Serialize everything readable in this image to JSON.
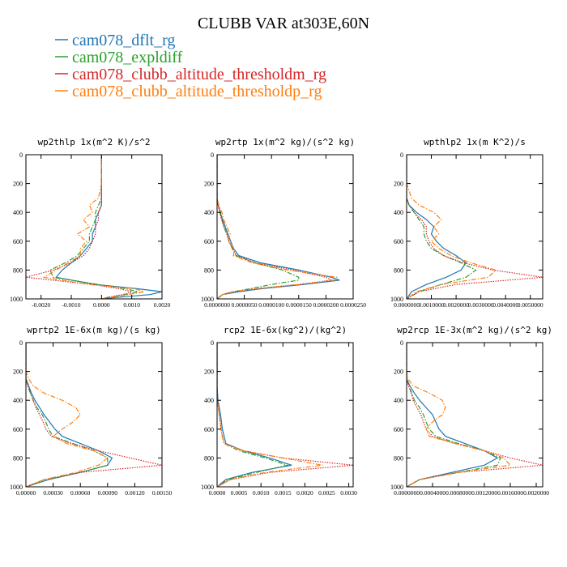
{
  "title": "CLUBB VAR at303E,60N",
  "legend": [
    {
      "label": "cam078_dflt_rg",
      "color": "#1f77b4",
      "dash": "solid"
    },
    {
      "label": "cam078_expldiff",
      "color": "#2ca02c",
      "dash": "dashdot"
    },
    {
      "label": "cam078_clubb_altitude_thresholdm_rg",
      "color": "#d62728",
      "dash": "dotted"
    },
    {
      "label": "cam078_clubb_altitude_thresholdp_rg",
      "color": "#ff7f0e",
      "dash": "dashdot"
    }
  ],
  "chart_data": [
    {
      "type": "line",
      "title": "wp2thlp  1x(m^2 K)/s^2",
      "xlim": [
        -0.0025,
        0.002
      ],
      "ylim": [
        1000,
        0
      ],
      "yticks": [
        0,
        200,
        400,
        600,
        800,
        1000
      ],
      "xticks": [
        "-0.0020",
        "-0.0010",
        "0.0000",
        "0.0010",
        "0.0020"
      ],
      "xtick_values": [
        -0.002,
        -0.001,
        0,
        0.001,
        0.002
      ],
      "y": [
        0,
        200,
        300,
        350,
        400,
        450,
        500,
        550,
        600,
        650,
        700,
        750,
        800,
        850,
        900,
        930,
        950,
        970,
        990,
        1000
      ],
      "series": [
        {
          "name": "cam078_dflt_rg",
          "values": [
            0,
            0,
            0,
            0,
            -0.0001,
            -0.0002,
            -0.0002,
            -0.0003,
            -0.0003,
            -0.0005,
            -0.0007,
            -0.001,
            -0.0013,
            -0.0015,
            -0.0002,
            0.0012,
            0.002,
            0.0016,
            0.0005,
            0
          ]
        },
        {
          "name": "cam078_expldiff",
          "values": [
            0,
            0,
            0,
            -0.0001,
            -0.0002,
            -0.0002,
            -0.0003,
            -0.0004,
            -0.0004,
            -0.0006,
            -0.0008,
            -0.0012,
            -0.0017,
            -0.0016,
            -0.0001,
            0.0008,
            0.0012,
            0.0008,
            0.0002,
            0
          ]
        },
        {
          "name": "cam078_clubb_altitude_thresholdm_rg",
          "values": [
            0,
            0,
            0,
            0,
            -0.0001,
            -0.0001,
            -0.0002,
            -0.0002,
            -0.0003,
            -0.0004,
            -0.0006,
            -0.001,
            -0.0016,
            -0.0025,
            -0.0003,
            0.0006,
            0.001,
            0.0007,
            0.0002,
            0
          ]
        },
        {
          "name": "cam078_clubb_altitude_thresholdp_rg",
          "values": [
            0,
            0,
            -0.0001,
            -0.0004,
            -0.0003,
            -0.0006,
            -0.0004,
            -0.0008,
            -0.0005,
            -0.0007,
            -0.0007,
            -0.0011,
            -0.0015,
            -0.0019,
            -0.0004,
            0.0011,
            0.0014,
            0.0009,
            0.0003,
            0
          ]
        }
      ]
    },
    {
      "type": "line",
      "title": "wp2rtp  1x(m^2 kg)/(s^2 kg)",
      "xlim": [
        0,
        2.5e-05
      ],
      "ylim": [
        1000,
        0
      ],
      "yticks": [
        0,
        200,
        400,
        600,
        800,
        1000
      ],
      "xticks": [
        "0.0000000",
        "0.0000050",
        "0.0000100",
        "0.0000150",
        "0.0000200",
        "0.0000250"
      ],
      "xtick_values": [
        0,
        5e-06,
        1e-05,
        1.5e-05,
        2e-05,
        2.5e-05
      ],
      "y": [
        0,
        200,
        300,
        350,
        400,
        450,
        500,
        550,
        600,
        650,
        700,
        750,
        800,
        850,
        870,
        900,
        930,
        950,
        970,
        1000
      ],
      "series": [
        {
          "name": "cam078_dflt_rg",
          "values": [
            0,
            0,
            0,
            2e-07,
            6e-07,
            1e-06,
            1.5e-06,
            2e-06,
            2.5e-06,
            3e-06,
            4e-06,
            8e-06,
            1.5e-05,
            2.1e-05,
            2.25e-05,
            1.6e-05,
            8e-06,
            4e-06,
            1e-06,
            0
          ]
        },
        {
          "name": "cam078_expldiff",
          "values": [
            0,
            0,
            0,
            3e-07,
            5e-07,
            9e-07,
            1.2e-06,
            1.8e-06,
            2.2e-06,
            2.8e-06,
            3.5e-06,
            7e-06,
            1.2e-05,
            1.5e-05,
            1.5e-05,
            1e-05,
            6e-06,
            3e-06,
            1e-06,
            0
          ]
        },
        {
          "name": "cam078_clubb_altitude_thresholdm_rg",
          "values": [
            0,
            0,
            0,
            2e-07,
            5e-07,
            8e-07,
            1.3e-06,
            1.8e-06,
            2.2e-06,
            2.8e-06,
            3.6e-06,
            7e-06,
            1.4e-05,
            2e-05,
            2.1e-05,
            1.5e-05,
            7e-06,
            3e-06,
            1e-06,
            0
          ]
        },
        {
          "name": "cam078_clubb_altitude_thresholdp_rg",
          "values": [
            0,
            0,
            0,
            3e-07,
            9e-07,
            1.2e-06,
            1.8e-06,
            2.4e-06,
            2e-06,
            3.2e-06,
            3e-06,
            6.5e-06,
            1.3e-05,
            2.2e-05,
            2.15e-05,
            1.5e-05,
            7e-06,
            3e-06,
            1e-06,
            0
          ]
        }
      ]
    },
    {
      "type": "line",
      "title": "wpthlp2  1x(m K^2)/s",
      "xlim": [
        0,
        0.0055
      ],
      "ylim": [
        1000,
        0
      ],
      "yticks": [
        0,
        200,
        400,
        600,
        800,
        1000
      ],
      "xticks": [
        "0.0000000",
        "0.0010000",
        "0.0020000",
        "0.0030000",
        "0.0040000",
        "0.0050000"
      ],
      "xtick_values": [
        0,
        0.001,
        0.002,
        0.003,
        0.004,
        0.005
      ],
      "y": [
        0,
        200,
        300,
        350,
        400,
        450,
        500,
        550,
        600,
        650,
        700,
        750,
        800,
        850,
        900,
        950,
        1000
      ],
      "series": [
        {
          "name": "cam078_dflt_rg",
          "values": [
            0,
            0,
            0,
            0.0001,
            0.0004,
            0.0008,
            0.0011,
            0.001,
            0.0012,
            0.0015,
            0.002,
            0.0024,
            0.0022,
            0.0016,
            0.0008,
            0.0002,
            0
          ]
        },
        {
          "name": "cam078_expldiff",
          "values": [
            0,
            0,
            0,
            0.0001,
            0.0003,
            0.0005,
            0.0007,
            0.0007,
            0.0008,
            0.001,
            0.0015,
            0.0022,
            0.0028,
            0.0024,
            0.0014,
            0.0005,
            0
          ]
        },
        {
          "name": "cam078_clubb_altitude_thresholdm_rg",
          "values": [
            0,
            0,
            0,
            0.0001,
            0.0003,
            0.0006,
            0.0008,
            0.0008,
            0.0009,
            0.0011,
            0.0015,
            0.0023,
            0.0035,
            0.0055,
            0.002,
            0.0005,
            0
          ]
        },
        {
          "name": "cam078_clubb_altitude_thresholdp_rg",
          "values": [
            0,
            0,
            0.0002,
            0.0005,
            0.0011,
            0.0014,
            0.0011,
            0.0013,
            0.001,
            0.0013,
            0.0018,
            0.0026,
            0.0036,
            0.0033,
            0.0014,
            0.0004,
            0
          ]
        }
      ]
    },
    {
      "type": "line",
      "title": "wprtp2  1E-6x(m kg)/(s kg)",
      "xlim": [
        0,
        0.0015
      ],
      "ylim": [
        1000,
        0
      ],
      "yticks": [
        0,
        200,
        400,
        600,
        800,
        1000
      ],
      "xticks": [
        "0.00000",
        "0.00030",
        "0.00060",
        "0.00090",
        "0.00120",
        "0.00150"
      ],
      "xtick_values": [
        0,
        0.0003,
        0.0006,
        0.0009,
        0.0012,
        0.0015
      ],
      "y": [
        0,
        200,
        250,
        300,
        350,
        400,
        450,
        500,
        550,
        600,
        650,
        700,
        750,
        800,
        850,
        900,
        950,
        1000
      ],
      "series": [
        {
          "name": "cam078_dflt_rg",
          "values": [
            0,
            0,
            0,
            3e-05,
            6e-05,
            0.0001,
            0.00015,
            0.0002,
            0.00026,
            0.00032,
            0.0004,
            0.0006,
            0.0008,
            0.00095,
            0.0009,
            0.0006,
            0.00025,
            0
          ]
        },
        {
          "name": "cam078_expldiff",
          "values": [
            0,
            0,
            0,
            2e-05,
            5e-05,
            8e-05,
            0.00012,
            0.00018,
            0.00022,
            0.00025,
            0.0003,
            0.00052,
            0.00075,
            0.0009,
            0.0009,
            0.0006,
            0.00025,
            0
          ]
        },
        {
          "name": "cam078_clubb_altitude_thresholdm_rg",
          "values": [
            0,
            0,
            0,
            2e-05,
            5e-05,
            8e-05,
            0.00011,
            0.00015,
            0.00019,
            0.00022,
            0.00028,
            0.0005,
            0.0008,
            0.00115,
            0.0015,
            0.0006,
            0.0002,
            0
          ]
        },
        {
          "name": "cam078_clubb_altitude_thresholdp_rg",
          "values": [
            0,
            0,
            3e-05,
            8e-05,
            0.0002,
            0.0004,
            0.00055,
            0.0006,
            0.00052,
            0.0004,
            0.0003,
            0.00045,
            0.00075,
            0.0009,
            0.0008,
            0.00055,
            0.0002,
            0
          ]
        }
      ]
    },
    {
      "type": "line",
      "title": "rcp2  1E-6x(kg^2)/(kg^2)",
      "xlim": [
        0,
        0.0031
      ],
      "ylim": [
        1000,
        0
      ],
      "yticks": [
        0,
        200,
        400,
        600,
        800,
        1000
      ],
      "xticks": [
        "0.0000",
        "0.0005",
        "0.0010",
        "0.0015",
        "0.0020",
        "0.0025",
        "0.0030"
      ],
      "xtick_values": [
        0,
        0.0005,
        0.001,
        0.0015,
        0.002,
        0.0025,
        0.003
      ],
      "y": [
        0,
        200,
        300,
        400,
        450,
        500,
        550,
        600,
        650,
        700,
        750,
        800,
        850,
        900,
        950,
        1000
      ],
      "series": [
        {
          "name": "cam078_dflt_rg",
          "values": [
            0,
            0,
            0,
            2e-05,
            5e-05,
            8e-05,
            0.0001,
            0.00012,
            0.00016,
            0.0002,
            0.0006,
            0.0012,
            0.0017,
            0.0008,
            0.0002,
            0
          ]
        },
        {
          "name": "cam078_expldiff",
          "values": [
            0,
            0,
            0,
            1e-05,
            3e-05,
            5e-05,
            7e-05,
            9e-05,
            0.00012,
            0.00016,
            0.0005,
            0.0011,
            0.0016,
            0.0009,
            0.00025,
            0
          ]
        },
        {
          "name": "cam078_clubb_altitude_thresholdm_rg",
          "values": [
            0,
            0,
            0,
            1e-05,
            3e-05,
            5e-05,
            7e-05,
            9e-05,
            0.00012,
            0.00016,
            0.0006,
            0.0015,
            0.0031,
            0.0012,
            0.0003,
            0
          ]
        },
        {
          "name": "cam078_clubb_altitude_thresholdp_rg",
          "values": [
            0,
            0,
            0,
            1e-05,
            3e-05,
            5e-05,
            7e-05,
            9e-05,
            0.00012,
            0.00016,
            0.0006,
            0.0015,
            0.0024,
            0.0011,
            0.0003,
            0
          ]
        }
      ]
    },
    {
      "type": "line",
      "title": "wp2rcp  1E-3x(m^2 kg)/(s^2 kg)",
      "xlim": [
        0,
        0.0021
      ],
      "ylim": [
        1000,
        0
      ],
      "yticks": [
        0,
        200,
        400,
        600,
        800,
        1000
      ],
      "xticks": [
        "0.0000000",
        "0.0004000",
        "0.0008000",
        "0.0012000",
        "0.0016000",
        "0.0020000"
      ],
      "xtick_values": [
        0,
        0.0004,
        0.0008,
        0.0012,
        0.0016,
        0.002
      ],
      "y": [
        0,
        200,
        250,
        300,
        350,
        400,
        450,
        500,
        550,
        600,
        650,
        700,
        750,
        800,
        850,
        900,
        950,
        1000
      ],
      "series": [
        {
          "name": "cam078_dflt_rg",
          "values": [
            0,
            0,
            0,
            5e-05,
            0.00012,
            0.0002,
            0.0003,
            0.0004,
            0.00045,
            0.0005,
            0.0006,
            0.0009,
            0.0012,
            0.0014,
            0.0012,
            0.0007,
            0.0002,
            0
          ]
        },
        {
          "name": "cam078_expldiff",
          "values": [
            0,
            0,
            0,
            3e-05,
            8e-05,
            0.00012,
            0.0002,
            0.00026,
            0.0003,
            0.00035,
            0.00045,
            0.0008,
            0.0012,
            0.00145,
            0.0014,
            0.0008,
            0.0002,
            0
          ]
        },
        {
          "name": "cam078_clubb_altitude_thresholdm_rg",
          "values": [
            0,
            0,
            0,
            3e-05,
            7e-05,
            0.0001,
            0.00016,
            0.00022,
            0.00026,
            0.0003,
            0.0004,
            0.00075,
            0.0012,
            0.0016,
            0.0021,
            0.0008,
            0.0002,
            0
          ]
        },
        {
          "name": "cam078_clubb_altitude_thresholdp_rg",
          "values": [
            0,
            0,
            2e-05,
            0.0001,
            0.00035,
            0.00055,
            0.0006,
            0.00055,
            0.0004,
            0.0003,
            0.00035,
            0.00075,
            0.0012,
            0.0015,
            0.0016,
            0.0008,
            0.0002,
            0
          ]
        }
      ]
    }
  ]
}
